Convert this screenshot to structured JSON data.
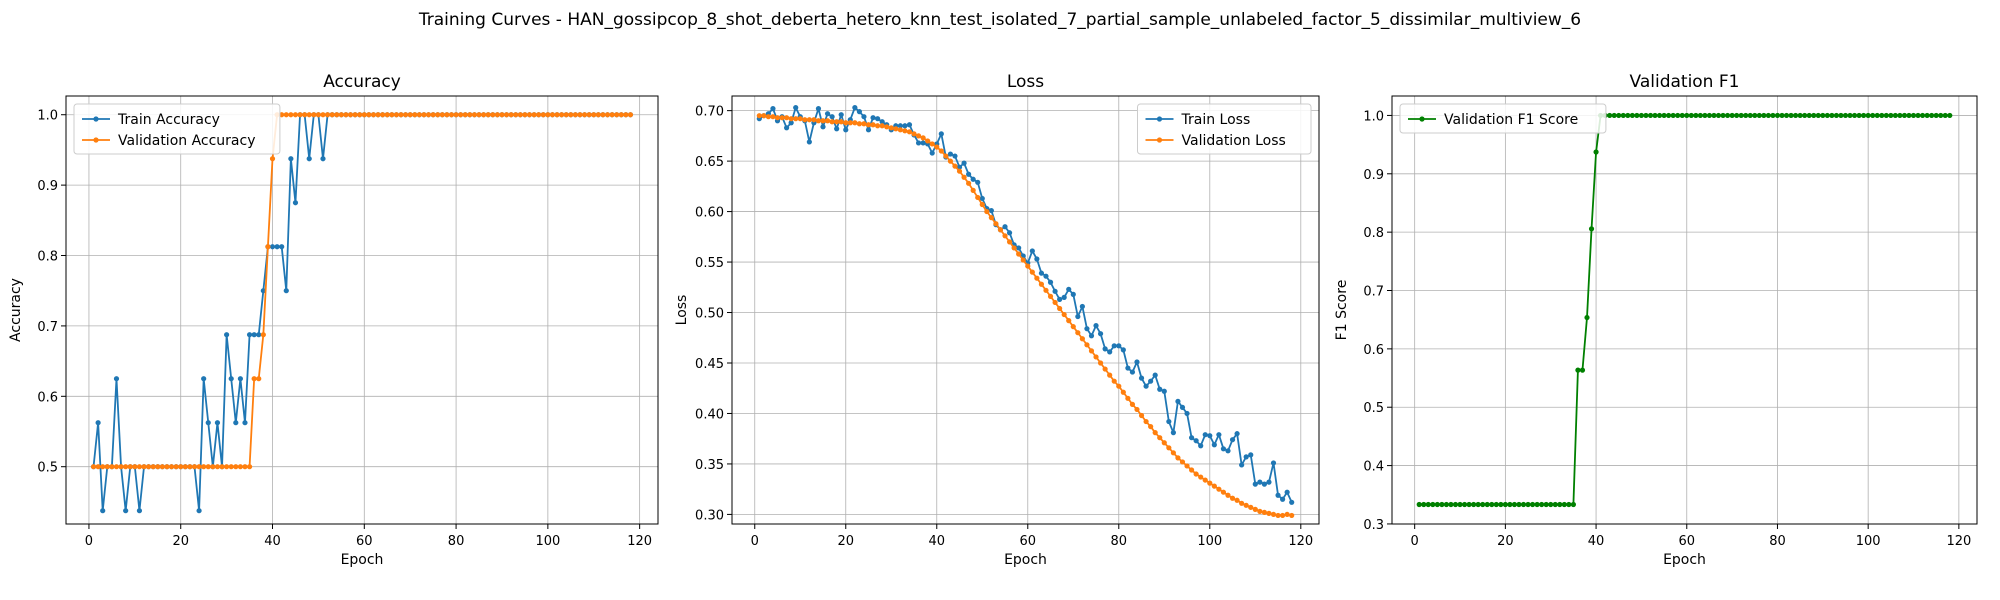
{
  "figure_title": "Training Curves - HAN_gossipcop_8_shot_deberta_hetero_knn_test_isolated_7_partial_sample_unlabeled_factor_5_dissimilar_multiview_6",
  "colors": {
    "blue": "#1f77b4",
    "orange": "#ff7f0e",
    "green": "#008000",
    "grid": "#b0b0b0"
  },
  "chart_data": [
    {
      "type": "line",
      "title": "Accuracy",
      "xlabel": "Epoch",
      "ylabel": "Accuracy",
      "xlim": [
        -5,
        124
      ],
      "ylim": [
        0.4186,
        1.0266
      ],
      "xticks": [
        0,
        20,
        40,
        60,
        80,
        100,
        120
      ],
      "yticks": [
        0.5,
        0.6,
        0.7,
        0.8,
        0.9,
        1.0
      ],
      "ytick_labels": [
        "0.5",
        "0.6",
        "0.7",
        "0.8",
        "0.9",
        "1.0"
      ],
      "grid": true,
      "legend": "upper-left",
      "series": [
        {
          "name": "Train Accuracy",
          "color": "blue",
          "x_start": 1,
          "values": [
            0.5,
            0.5625,
            0.4375,
            0.5,
            0.5,
            0.625,
            0.5,
            0.4375,
            0.5,
            0.5,
            0.4375,
            0.5,
            0.5,
            0.5,
            0.5,
            0.5,
            0.5,
            0.5,
            0.5,
            0.5,
            0.5,
            0.5,
            0.5,
            0.4375,
            0.625,
            0.5625,
            0.5,
            0.5625,
            0.5,
            0.6875,
            0.625,
            0.5625,
            0.625,
            0.5625,
            0.6875,
            0.6875,
            0.6875,
            0.75,
            0.8125,
            0.8125,
            0.8125,
            0.8125,
            0.75,
            0.9375,
            0.875,
            1.0,
            1.0,
            0.9375,
            1.0,
            1.0,
            0.9375,
            1.0,
            1.0,
            1.0,
            1.0,
            1.0,
            1.0,
            1.0,
            1.0,
            1.0,
            1.0,
            1.0,
            1.0,
            1.0,
            1.0,
            1.0,
            1.0,
            1.0,
            1.0,
            1.0,
            1.0,
            1.0,
            1.0,
            1.0,
            1.0,
            1.0,
            1.0,
            1.0,
            1.0,
            1.0,
            1.0,
            1.0,
            1.0,
            1.0,
            1.0,
            1.0,
            1.0,
            1.0,
            1.0,
            1.0,
            1.0,
            1.0,
            1.0,
            1.0,
            1.0,
            1.0,
            1.0,
            1.0,
            1.0,
            1.0,
            1.0,
            1.0,
            1.0,
            1.0,
            1.0,
            1.0,
            1.0,
            1.0,
            1.0,
            1.0,
            1.0,
            1.0,
            1.0,
            1.0,
            1.0,
            1.0,
            1.0,
            1.0
          ]
        },
        {
          "name": "Validation Accuracy",
          "color": "orange",
          "x_start": 1,
          "values": [
            0.5,
            0.5,
            0.5,
            0.5,
            0.5,
            0.5,
            0.5,
            0.5,
            0.5,
            0.5,
            0.5,
            0.5,
            0.5,
            0.5,
            0.5,
            0.5,
            0.5,
            0.5,
            0.5,
            0.5,
            0.5,
            0.5,
            0.5,
            0.5,
            0.5,
            0.5,
            0.5,
            0.5,
            0.5,
            0.5,
            0.5,
            0.5,
            0.5,
            0.5,
            0.5,
            0.625,
            0.625,
            0.6875,
            0.8125,
            0.9375,
            1.0,
            1.0,
            1.0,
            1.0,
            1.0,
            1.0,
            1.0,
            1.0,
            1.0,
            1.0,
            1.0,
            1.0,
            1.0,
            1.0,
            1.0,
            1.0,
            1.0,
            1.0,
            1.0,
            1.0,
            1.0,
            1.0,
            1.0,
            1.0,
            1.0,
            1.0,
            1.0,
            1.0,
            1.0,
            1.0,
            1.0,
            1.0,
            1.0,
            1.0,
            1.0,
            1.0,
            1.0,
            1.0,
            1.0,
            1.0,
            1.0,
            1.0,
            1.0,
            1.0,
            1.0,
            1.0,
            1.0,
            1.0,
            1.0,
            1.0,
            1.0,
            1.0,
            1.0,
            1.0,
            1.0,
            1.0,
            1.0,
            1.0,
            1.0,
            1.0,
            1.0,
            1.0,
            1.0,
            1.0,
            1.0,
            1.0,
            1.0,
            1.0,
            1.0,
            1.0,
            1.0,
            1.0,
            1.0,
            1.0,
            1.0,
            1.0,
            1.0,
            1.0
          ]
        }
      ]
    },
    {
      "type": "line",
      "title": "Loss",
      "xlabel": "Epoch",
      "ylabel": "Loss",
      "xlim": [
        -5,
        124
      ],
      "ylim": [
        0.2905,
        0.7145
      ],
      "xticks": [
        0,
        20,
        40,
        60,
        80,
        100,
        120
      ],
      "yticks": [
        0.3,
        0.35,
        0.4,
        0.45,
        0.5,
        0.55,
        0.6,
        0.65,
        0.7
      ],
      "ytick_labels": [
        "0.30",
        "0.35",
        "0.40",
        "0.45",
        "0.50",
        "0.55",
        "0.60",
        "0.65",
        "0.70"
      ],
      "grid": true,
      "legend": "upper-right",
      "series": [
        {
          "name": "Train Loss",
          "color": "blue",
          "x_start": 1,
          "values": [
            0.692,
            0.695,
            0.697,
            0.702,
            0.69,
            0.694,
            0.683,
            0.688,
            0.703,
            0.694,
            0.69,
            0.669,
            0.688,
            0.702,
            0.684,
            0.697,
            0.694,
            0.682,
            0.696,
            0.681,
            0.691,
            0.703,
            0.699,
            0.694,
            0.681,
            0.693,
            0.692,
            0.689,
            0.686,
            0.681,
            0.685,
            0.685,
            0.685,
            0.686,
            0.676,
            0.668,
            0.668,
            0.667,
            0.658,
            0.667,
            0.677,
            0.654,
            0.657,
            0.655,
            0.644,
            0.648,
            0.637,
            0.632,
            0.629,
            0.613,
            0.603,
            0.601,
            0.587,
            0.582,
            0.585,
            0.579,
            0.567,
            0.564,
            0.556,
            0.549,
            0.561,
            0.553,
            0.539,
            0.536,
            0.53,
            0.521,
            0.513,
            0.515,
            0.523,
            0.518,
            0.496,
            0.506,
            0.484,
            0.477,
            0.487,
            0.479,
            0.464,
            0.461,
            0.467,
            0.467,
            0.463,
            0.445,
            0.441,
            0.451,
            0.435,
            0.427,
            0.432,
            0.438,
            0.424,
            0.422,
            0.392,
            0.381,
            0.412,
            0.406,
            0.4,
            0.376,
            0.373,
            0.368,
            0.379,
            0.378,
            0.369,
            0.379,
            0.365,
            0.363,
            0.374,
            0.38,
            0.349,
            0.357,
            0.359,
            0.33,
            0.332,
            0.33,
            0.332,
            0.351,
            0.319,
            0.315,
            0.322,
            0.312
          ]
        },
        {
          "name": "Validation Loss",
          "color": "orange",
          "x_start": 1,
          "values": [
            0.695,
            0.695,
            0.694,
            0.694,
            0.693,
            0.693,
            0.693,
            0.692,
            0.692,
            0.692,
            0.691,
            0.691,
            0.691,
            0.69,
            0.69,
            0.69,
            0.689,
            0.689,
            0.689,
            0.688,
            0.688,
            0.688,
            0.687,
            0.687,
            0.686,
            0.686,
            0.685,
            0.685,
            0.684,
            0.683,
            0.682,
            0.681,
            0.68,
            0.679,
            0.677,
            0.675,
            0.673,
            0.67,
            0.667,
            0.664,
            0.66,
            0.655,
            0.65,
            0.645,
            0.64,
            0.634,
            0.628,
            0.621,
            0.614,
            0.607,
            0.6,
            0.594,
            0.588,
            0.582,
            0.576,
            0.57,
            0.564,
            0.558,
            0.552,
            0.546,
            0.54,
            0.534,
            0.528,
            0.522,
            0.516,
            0.51,
            0.504,
            0.498,
            0.492,
            0.486,
            0.48,
            0.474,
            0.468,
            0.462,
            0.456,
            0.45,
            0.444,
            0.438,
            0.432,
            0.427,
            0.421,
            0.415,
            0.409,
            0.404,
            0.398,
            0.392,
            0.387,
            0.381,
            0.376,
            0.371,
            0.366,
            0.361,
            0.356,
            0.352,
            0.348,
            0.344,
            0.34,
            0.337,
            0.334,
            0.331,
            0.328,
            0.325,
            0.322,
            0.319,
            0.316,
            0.314,
            0.311,
            0.309,
            0.307,
            0.305,
            0.303,
            0.302,
            0.301,
            0.3,
            0.299,
            0.299,
            0.3,
            0.299
          ]
        }
      ]
    },
    {
      "type": "line",
      "title": "Validation F1",
      "xlabel": "Epoch",
      "ylabel": "F1 Score",
      "xlim": [
        -5,
        124
      ],
      "ylim": [
        0.2999,
        1.0333
      ],
      "xticks": [
        0,
        20,
        40,
        60,
        80,
        100,
        120
      ],
      "yticks": [
        0.3,
        0.4,
        0.5,
        0.6,
        0.7,
        0.8,
        0.9,
        1.0
      ],
      "ytick_labels": [
        "0.3",
        "0.4",
        "0.5",
        "0.6",
        "0.7",
        "0.8",
        "0.9",
        "1.0"
      ],
      "grid": true,
      "legend": "upper-left",
      "series": [
        {
          "name": "Validation F1 Score",
          "color": "green",
          "x_start": 1,
          "values": [
            0.3333,
            0.3333,
            0.3333,
            0.3333,
            0.3333,
            0.3333,
            0.3333,
            0.3333,
            0.3333,
            0.3333,
            0.3333,
            0.3333,
            0.3333,
            0.3333,
            0.3333,
            0.3333,
            0.3333,
            0.3333,
            0.3333,
            0.3333,
            0.3333,
            0.3333,
            0.3333,
            0.3333,
            0.3333,
            0.3333,
            0.3333,
            0.3333,
            0.3333,
            0.3333,
            0.3333,
            0.3333,
            0.3333,
            0.3333,
            0.3333,
            0.5636,
            0.5636,
            0.6537,
            0.8057,
            0.9373,
            1.0,
            1.0,
            1.0,
            1.0,
            1.0,
            1.0,
            1.0,
            1.0,
            1.0,
            1.0,
            1.0,
            1.0,
            1.0,
            1.0,
            1.0,
            1.0,
            1.0,
            1.0,
            1.0,
            1.0,
            1.0,
            1.0,
            1.0,
            1.0,
            1.0,
            1.0,
            1.0,
            1.0,
            1.0,
            1.0,
            1.0,
            1.0,
            1.0,
            1.0,
            1.0,
            1.0,
            1.0,
            1.0,
            1.0,
            1.0,
            1.0,
            1.0,
            1.0,
            1.0,
            1.0,
            1.0,
            1.0,
            1.0,
            1.0,
            1.0,
            1.0,
            1.0,
            1.0,
            1.0,
            1.0,
            1.0,
            1.0,
            1.0,
            1.0,
            1.0,
            1.0,
            1.0,
            1.0,
            1.0,
            1.0,
            1.0,
            1.0,
            1.0,
            1.0,
            1.0,
            1.0,
            1.0,
            1.0,
            1.0,
            1.0,
            1.0,
            1.0,
            1.0
          ]
        }
      ]
    }
  ]
}
